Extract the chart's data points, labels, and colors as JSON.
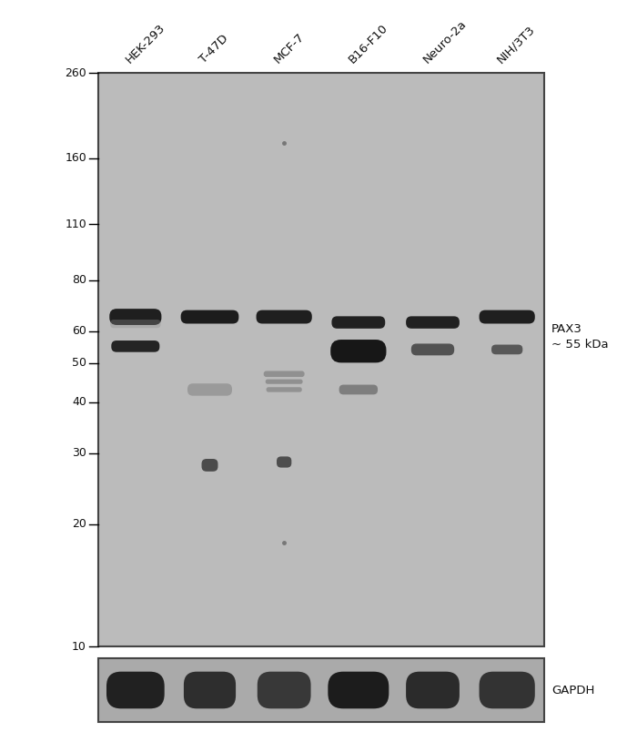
{
  "bg_color": "#c8c8c8",
  "white_bg": "#ffffff",
  "panel_bg": "#bbbbbb",
  "gapdh_bg": "#aaaaaa",
  "marker_labels": [
    "260",
    "160",
    "110",
    "80",
    "60",
    "50",
    "40",
    "30",
    "20",
    "10"
  ],
  "marker_positions": [
    260,
    160,
    110,
    80,
    60,
    50,
    40,
    30,
    20,
    10
  ],
  "lane_labels": [
    "HEK-293",
    "T-47D",
    "MCF-7",
    "B16-F10",
    "Neuro-2a",
    "NIH/3T3"
  ],
  "pax3_label": "PAX3\n~ 55 kDa",
  "gapdh_label": "GAPDH"
}
